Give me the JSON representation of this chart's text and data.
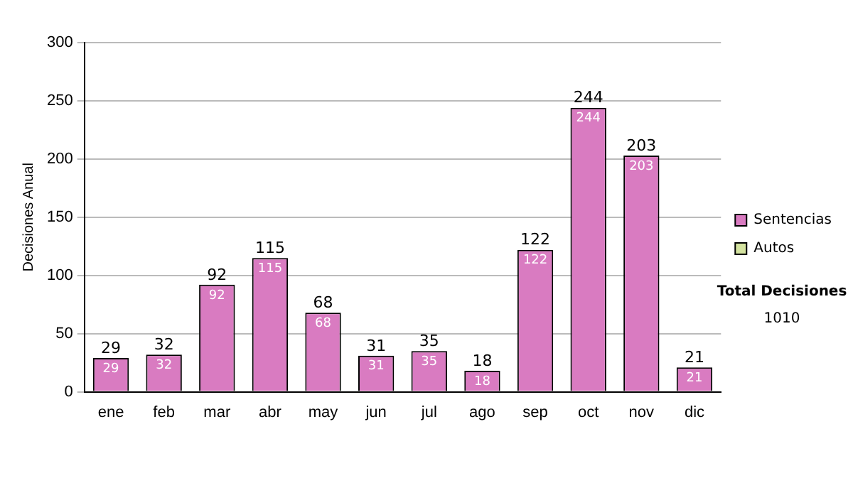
{
  "chart_data": {
    "type": "bar",
    "ylabel": "Decisiones Anual",
    "categories": [
      "ene",
      "feb",
      "mar",
      "abr",
      "may",
      "jun",
      "jul",
      "ago",
      "sep",
      "oct",
      "nov",
      "dic"
    ],
    "series": [
      {
        "name": "Sentencias",
        "color": "#d97bc1",
        "values": [
          29,
          32,
          92,
          115,
          68,
          31,
          35,
          18,
          122,
          244,
          203,
          21
        ],
        "value_labels": [
          "29",
          "32",
          "92",
          "115",
          "68",
          "31",
          "35",
          "18",
          "122",
          "244",
          "203",
          "21"
        ]
      },
      {
        "name": "Autos",
        "color": "#d4e3a0",
        "values": [
          0,
          0,
          0,
          0,
          0,
          0,
          0,
          0,
          0,
          0,
          0,
          0
        ]
      }
    ],
    "stacked": true,
    "totals": [
      "29",
      "32",
      "92",
      "115",
      "68",
      "31",
      "35",
      "18",
      "122",
      "244",
      "203",
      "21"
    ],
    "ylim": [
      0,
      300
    ],
    "yticks": [
      0,
      50,
      100,
      150,
      200,
      250,
      300
    ],
    "grid": "y",
    "legend": "right",
    "annotations": [
      "Total Decisiones",
      "1010"
    ]
  }
}
